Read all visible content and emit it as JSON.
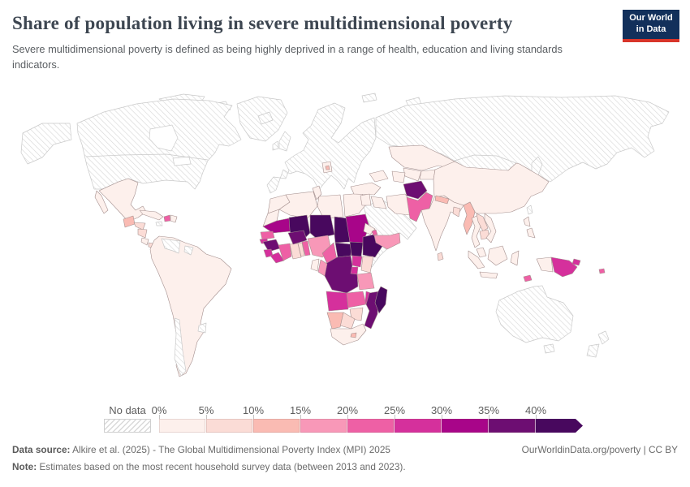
{
  "header": {
    "title": "Share of population living in severe multidimensional poverty",
    "subtitle": "Severe multidimensional poverty is defined as being highly deprived in a range of health, education and living standards indicators.",
    "logo": {
      "line1": "Our World",
      "line2": "in Data"
    }
  },
  "chart_data": {
    "type": "heatmap",
    "subtype": "world-choropleth-map",
    "title": "Share of population living in severe multidimensional poverty",
    "unit": "% of population",
    "legend": {
      "position": "bottom",
      "no_data_label": "No data",
      "no_data_pattern": "diagonal-hatch",
      "tick_labels": [
        "0%",
        "5%",
        "10%",
        "15%",
        "20%",
        "25%",
        "30%",
        "35%",
        "40%"
      ],
      "bin_labels": [
        "0-5%",
        "5-10%",
        "10-15%",
        "15-20%",
        "20-25%",
        "25-30%",
        "30-35%",
        "35-40%",
        "40%+"
      ],
      "bin_colors": [
        "#fdf0ec",
        "#fbdcd6",
        "#fabbb3",
        "#f898b8",
        "#ee60a5",
        "#d5309c",
        "#a80589",
        "#6d0e72",
        "#48085e"
      ],
      "open_ended_upper": true
    },
    "regions": [
      {
        "id": "greenland",
        "bin": 0
      },
      {
        "id": "north-america",
        "bin": 0
      },
      {
        "id": "iceland",
        "bin": 0
      },
      {
        "id": "uk",
        "bin": 0
      },
      {
        "id": "ireland",
        "bin": 0
      },
      {
        "id": "europe",
        "bin": 0
      },
      {
        "id": "russia",
        "bin": 0
      },
      {
        "id": "mongolia",
        "bin": 0
      },
      {
        "id": "saudi-arabia-gulf-states",
        "bin": 0
      },
      {
        "id": "somalia",
        "bin": 0
      },
      {
        "id": "japan",
        "bin": 0
      },
      {
        "id": "south-korea",
        "bin": 0
      },
      {
        "id": "taiwan",
        "bin": 0
      },
      {
        "id": "australia",
        "bin": 0
      },
      {
        "id": "new-zealand",
        "bin": 0
      },
      {
        "id": "jamaica",
        "bin": 0
      },
      {
        "id": "venezuela",
        "bin": 0
      },
      {
        "id": "french-guiana",
        "bin": 0
      },
      {
        "id": "chile",
        "bin": 0
      },
      {
        "id": "uruguay",
        "bin": 0
      },
      {
        "id": "arctic-islands",
        "bin": 0
      },
      {
        "id": "cuba",
        "bin": 1
      },
      {
        "id": "mexico",
        "bin": 1
      },
      {
        "id": "costa-rica",
        "bin": 1
      },
      {
        "id": "dominican-republic",
        "bin": 1
      },
      {
        "id": "south-america",
        "bin": 1
      },
      {
        "id": "morocco",
        "bin": 1
      },
      {
        "id": "algeria",
        "bin": 1
      },
      {
        "id": "tunisia",
        "bin": 1
      },
      {
        "id": "libya",
        "bin": 1
      },
      {
        "id": "egypt",
        "bin": 1
      },
      {
        "id": "eritrea",
        "bin": 1
      },
      {
        "id": "gabon",
        "bin": 1
      },
      {
        "id": "south-africa",
        "bin": 1
      },
      {
        "id": "levant",
        "bin": 1
      },
      {
        "id": "turkey",
        "bin": 1
      },
      {
        "id": "caucasus",
        "bin": 1
      },
      {
        "id": "iraq",
        "bin": 1
      },
      {
        "id": "iran",
        "bin": 1
      },
      {
        "id": "kazakhstan",
        "bin": 1
      },
      {
        "id": "uzbekistan",
        "bin": 1
      },
      {
        "id": "turkmenistan",
        "bin": 1
      },
      {
        "id": "kyrgyzstan-tajikistan",
        "bin": 1
      },
      {
        "id": "india",
        "bin": 1
      },
      {
        "id": "thailand",
        "bin": 1
      },
      {
        "id": "vietnam",
        "bin": 1
      },
      {
        "id": "china",
        "bin": 1
      },
      {
        "id": "philippines",
        "bin": 1
      },
      {
        "id": "malaysia",
        "bin": 1
      },
      {
        "id": "indonesia",
        "bin": 1
      },
      {
        "id": "balkans",
        "bin": 1
      },
      {
        "id": "honduras",
        "bin": 2
      },
      {
        "id": "nicaragua",
        "bin": 2
      },
      {
        "id": "panama",
        "bin": 2
      },
      {
        "id": "ghana",
        "bin": 2
      },
      {
        "id": "togo",
        "bin": 2
      },
      {
        "id": "kenya",
        "bin": 2
      },
      {
        "id": "zimbabwe",
        "bin": 2
      },
      {
        "id": "botswana",
        "bin": 2
      },
      {
        "id": "bangladesh",
        "bin": 2
      },
      {
        "id": "sri-lanka",
        "bin": 2
      },
      {
        "id": "laos",
        "bin": 2
      },
      {
        "id": "cambodia",
        "bin": 2
      },
      {
        "id": "guatemala",
        "bin": 3
      },
      {
        "id": "namibia",
        "bin": 3
      },
      {
        "id": "nepal",
        "bin": 3
      },
      {
        "id": "myanmar",
        "bin": 3
      },
      {
        "id": "lesotho",
        "bin": 3
      },
      {
        "id": "kosovo",
        "bin": 3
      },
      {
        "id": "nigeria",
        "bin": 4
      },
      {
        "id": "congo",
        "bin": 4
      },
      {
        "id": "tanzania",
        "bin": 4
      },
      {
        "id": "yemen",
        "bin": 4
      },
      {
        "id": "haiti",
        "bin": 5
      },
      {
        "id": "senegal",
        "bin": 5
      },
      {
        "id": "cote-divoire",
        "bin": 5
      },
      {
        "id": "benin",
        "bin": 5
      },
      {
        "id": "cameroon",
        "bin": 5
      },
      {
        "id": "zambia",
        "bin": 5
      },
      {
        "id": "pakistan",
        "bin": 5
      },
      {
        "id": "timor-leste",
        "bin": 5
      },
      {
        "id": "solomon-islands",
        "bin": 5
      },
      {
        "id": "djibouti",
        "bin": 5
      },
      {
        "id": "guinea-bissau",
        "bin": 6
      },
      {
        "id": "sierra-leone",
        "bin": 6
      },
      {
        "id": "liberia",
        "bin": 6
      },
      {
        "id": "uganda",
        "bin": 6
      },
      {
        "id": "rwanda-burundi",
        "bin": 6
      },
      {
        "id": "angola",
        "bin": 6
      },
      {
        "id": "malawi",
        "bin": 6
      },
      {
        "id": "papua-new-guinea",
        "bin": 6
      },
      {
        "id": "mauritania",
        "bin": 7
      },
      {
        "id": "sudan",
        "bin": 7
      },
      {
        "id": "guinea",
        "bin": 8
      },
      {
        "id": "burkina-faso",
        "bin": 8
      },
      {
        "id": "democratic-republic-of-congo",
        "bin": 8
      },
      {
        "id": "mozambique",
        "bin": 8
      },
      {
        "id": "afghanistan",
        "bin": 8
      },
      {
        "id": "mali",
        "bin": 9
      },
      {
        "id": "niger",
        "bin": 9
      },
      {
        "id": "chad",
        "bin": 9
      },
      {
        "id": "central-african-republic",
        "bin": 9
      },
      {
        "id": "south-sudan",
        "bin": 9
      },
      {
        "id": "ethiopia",
        "bin": 9
      },
      {
        "id": "madagascar",
        "bin": 9
      }
    ]
  },
  "footer": {
    "data_source_label": "Data source:",
    "data_source": "Alkire et al. (2025) - The Global Multidimensional Poverty Index (MPI) 2025",
    "rights": "OurWorldinData.org/poverty | CC BY",
    "note_label": "Note:",
    "note": "Estimates based on the most recent household survey data (between 2013 and 2023)."
  }
}
